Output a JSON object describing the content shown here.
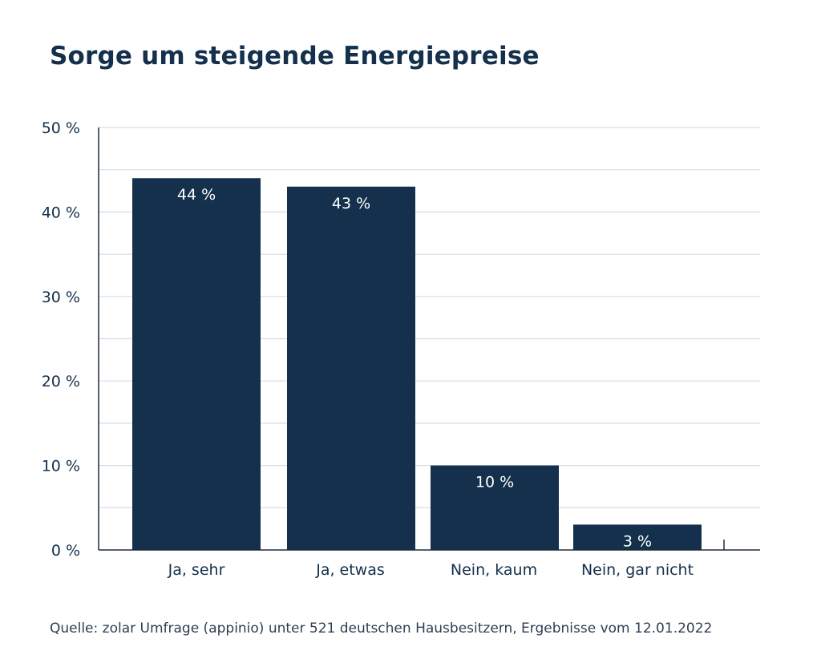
{
  "chart_data": {
    "type": "bar",
    "title": "Sorge um steigende Energiepreise",
    "categories": [
      "Ja, sehr",
      "Ja, etwas",
      "Nein, kaum",
      "Nein, gar nicht"
    ],
    "values": [
      44,
      43,
      10,
      3
    ],
    "value_labels": [
      "44 %",
      "43 %",
      "10 %",
      "3 %"
    ],
    "xlabel": "",
    "ylabel": "",
    "ylim": [
      0,
      50
    ],
    "y_ticks": [
      0,
      10,
      20,
      30,
      40,
      50
    ],
    "y_tick_labels": [
      "0 %",
      "10 %",
      "20 %",
      "30 %",
      "40 %",
      "50 %"
    ],
    "minor_gridlines": [
      5,
      15,
      25,
      35,
      45
    ],
    "grid": true,
    "legend": "none"
  },
  "colors": {
    "bar": "#14304c",
    "grid": "#d7dce3",
    "axis": "#1d2b3a",
    "text": "#14304c",
    "bar_label": "#ffffff"
  },
  "footer": {
    "source": "Quelle: zolar Umfrage (appinio) unter 521 deutschen Hausbesitzern, Ergebnisse vom 12.01.2022"
  }
}
